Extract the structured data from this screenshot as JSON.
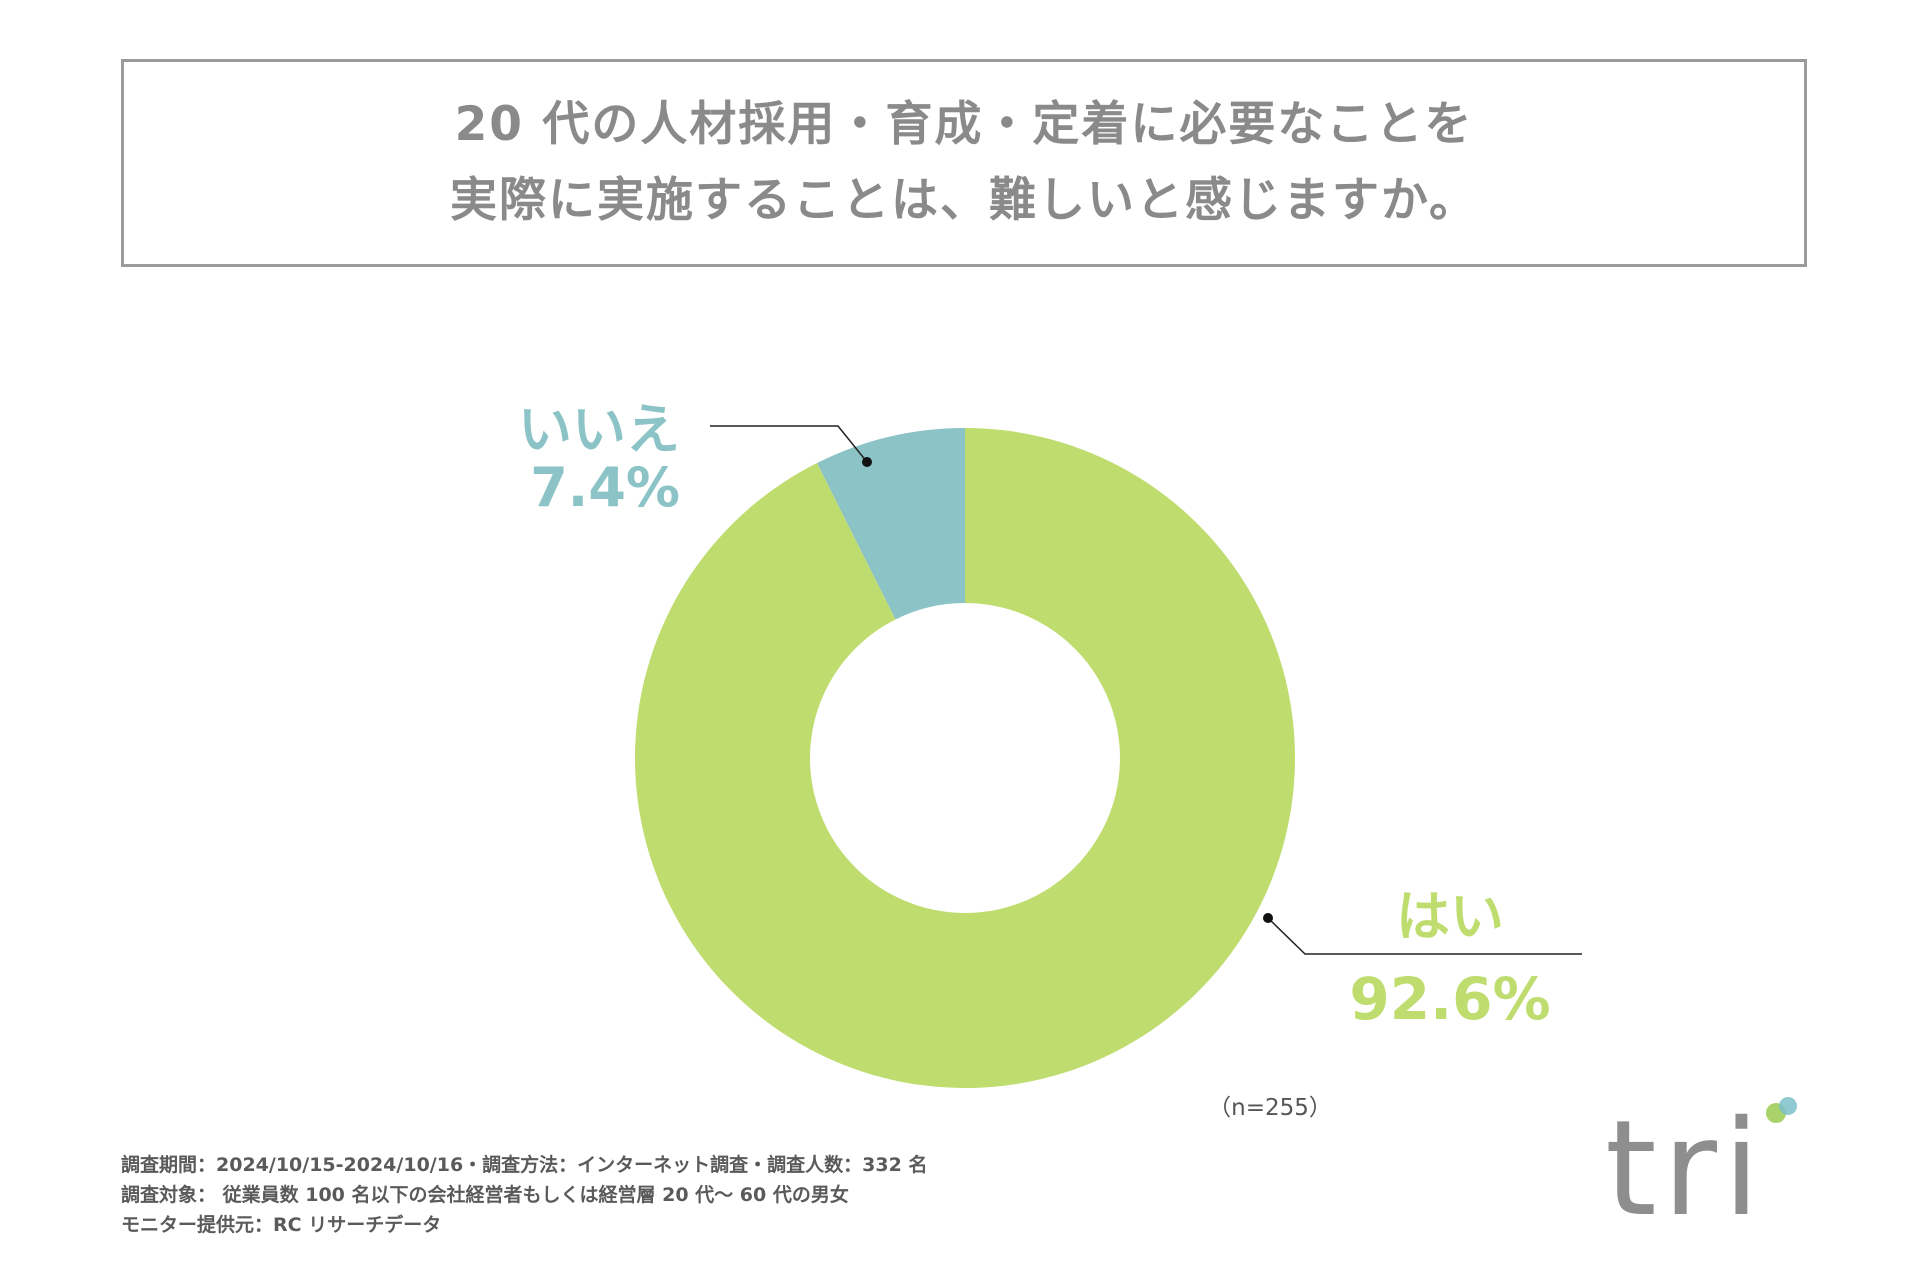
{
  "title": {
    "line1": "20 代の人材採用・育成・定着に必要なことを",
    "line2": "実際に実施することは、難しいと感じますか。"
  },
  "chart_data": {
    "type": "pie",
    "style": "donut",
    "slices": [
      {
        "name": "はい",
        "value": 92.6,
        "label": "92.6%",
        "color": "#bfdc6e"
      },
      {
        "name": "いいえ",
        "value": 7.4,
        "label": "7.4%",
        "color": "#8bc3c6"
      }
    ],
    "sample_size": "（n=255）"
  },
  "footnotes": {
    "line1": "調査期間：2024/10/15-2024/10/16・調査方法：インターネット調査・調査人数：332 名",
    "line2": "調査対象： 従業員数 100 名以下の会社経営者もしくは経営層 20 代〜 60 代の男女",
    "line3": "モニター提供元：RC リサーチデータ"
  },
  "logo": {
    "text": "tri",
    "colors": [
      "#a9d26a",
      "#7cc0c9"
    ]
  }
}
